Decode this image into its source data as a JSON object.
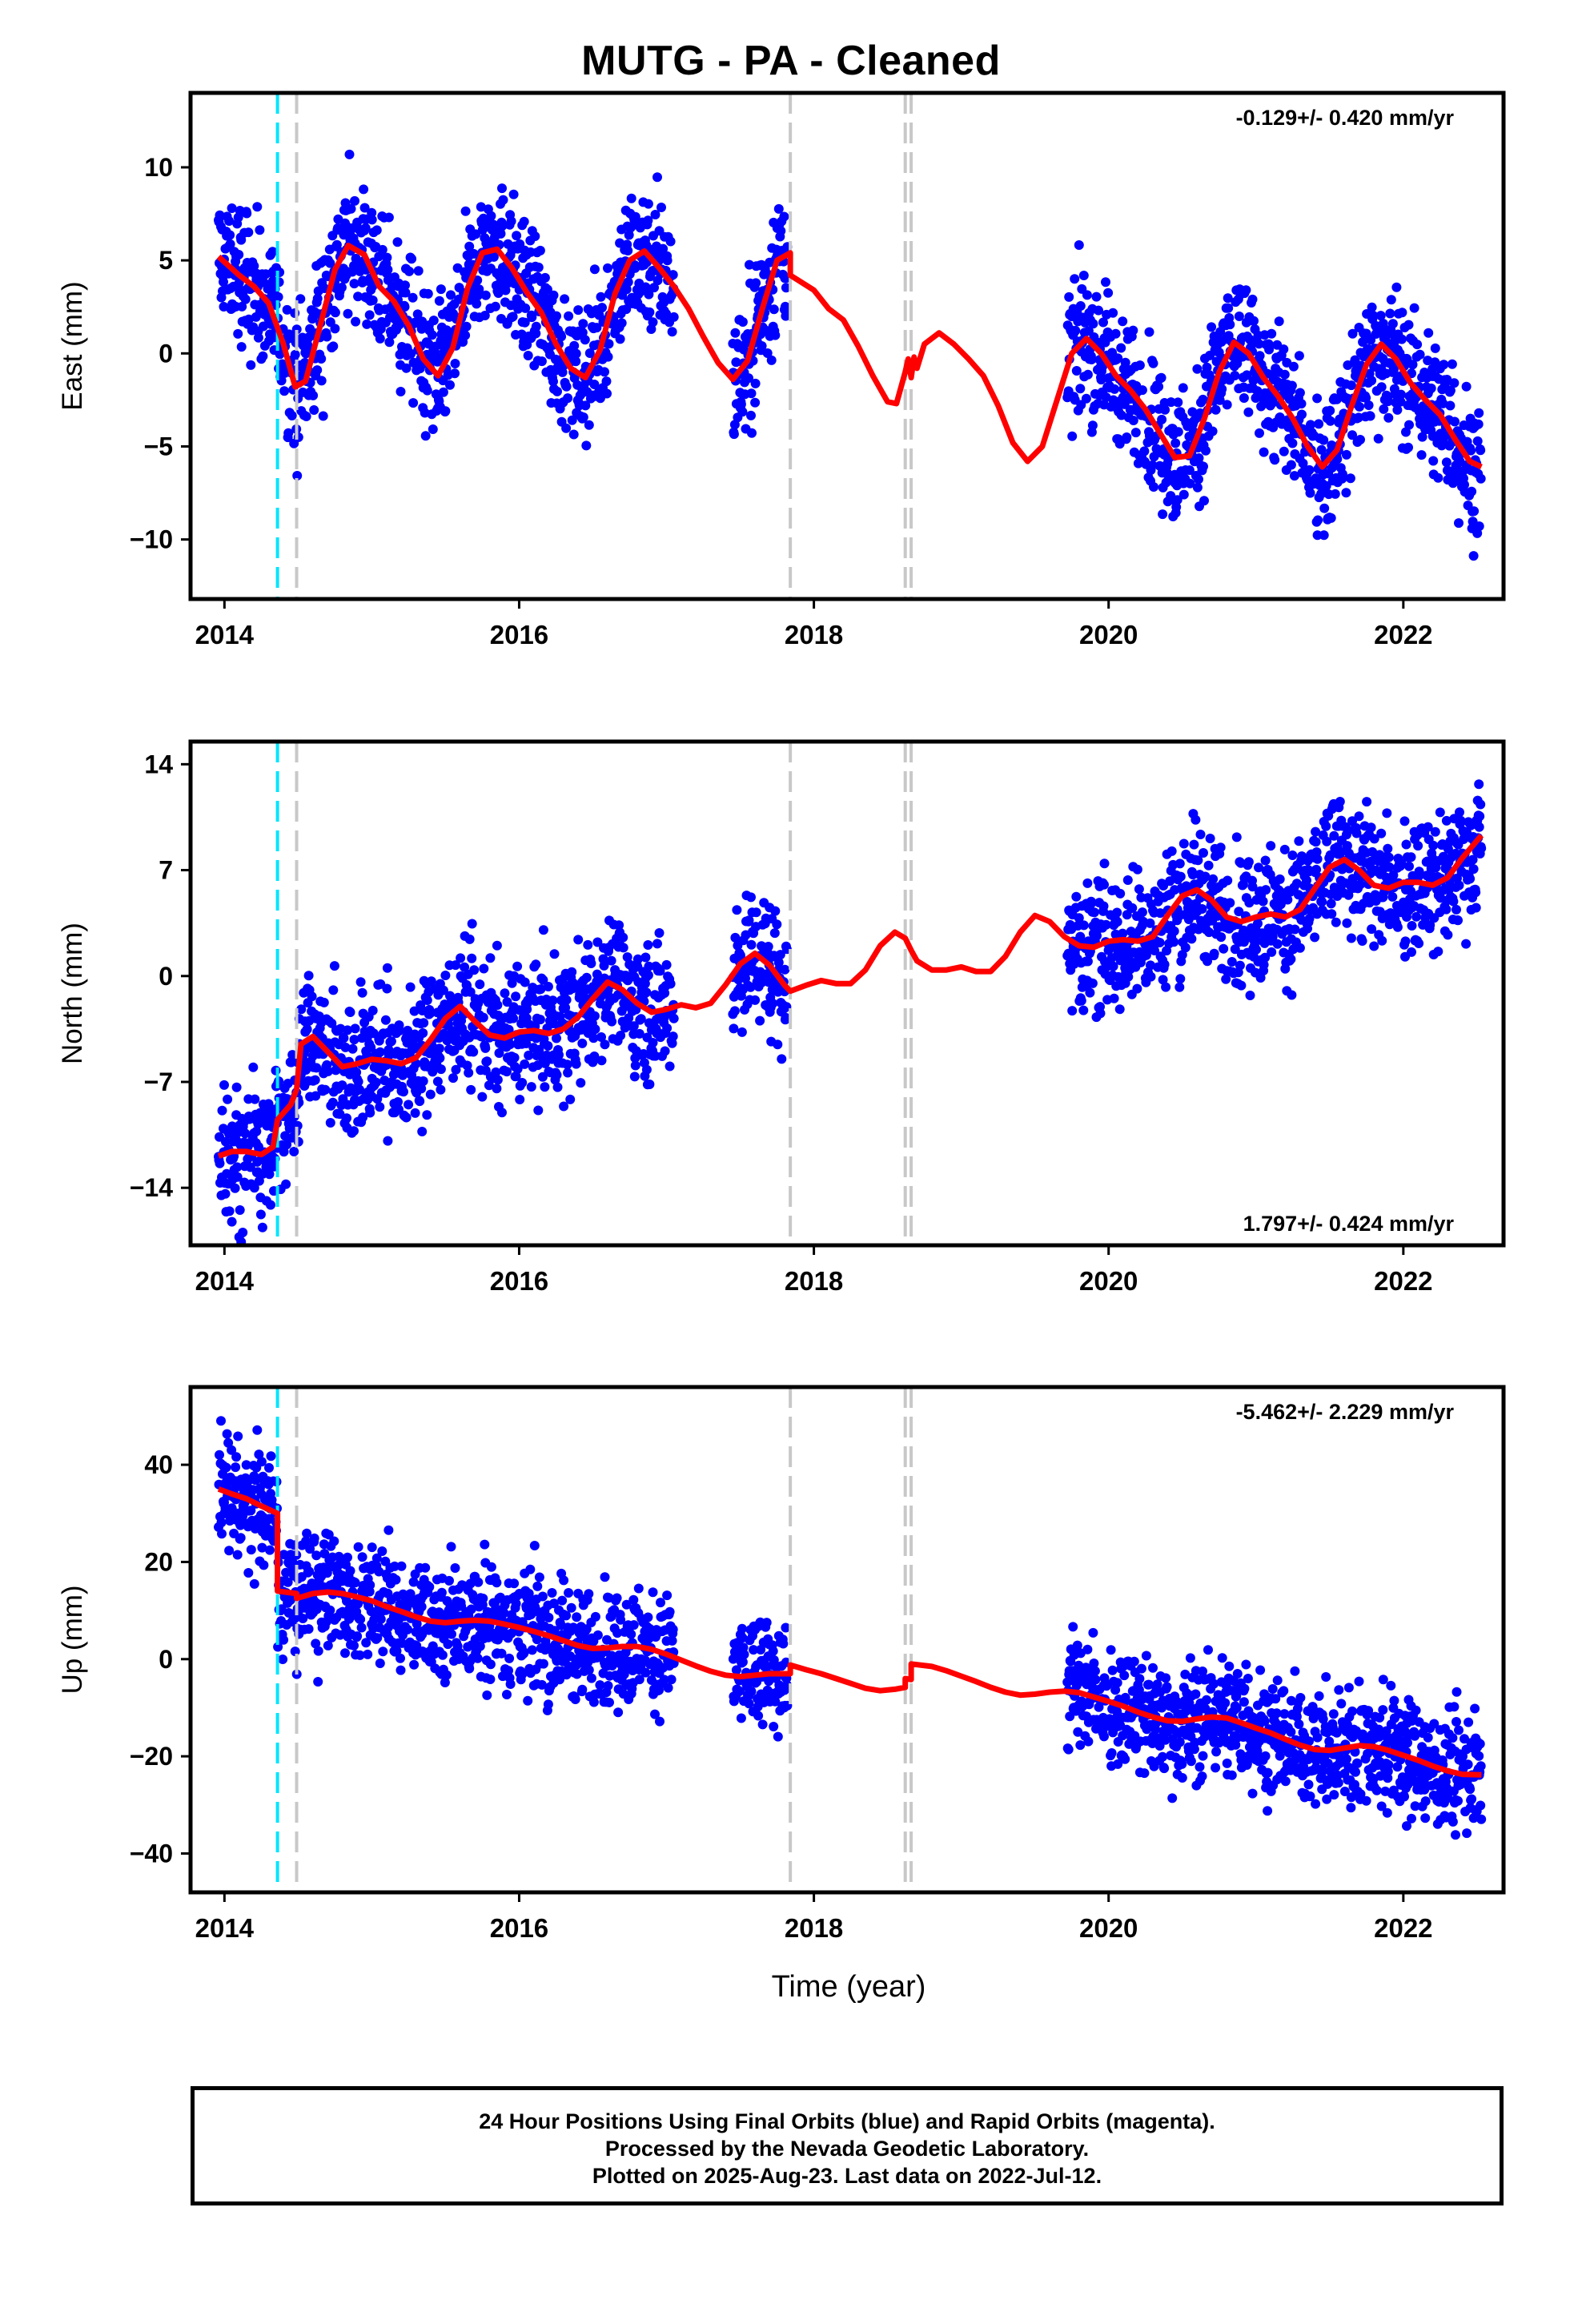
{
  "title": "MUTG  - PA - Cleaned",
  "xlabel": "Time (year)",
  "footer": {
    "line1": "24 Hour Positions Using Final Orbits (blue) and Rapid Orbits (magenta).",
    "line2": "Processed by the Nevada Geodetic Laboratory.",
    "line3": "Plotted on 2025-Aug-23. Last data on 2022-Jul-12."
  },
  "colors": {
    "points": "#0000ff",
    "fit": "#ff0000",
    "equipment_change": "#c8c8c8",
    "earthquake": "#00e5ff"
  },
  "chart_data": [
    {
      "type": "scatter",
      "ylabel": "East (mm)",
      "rate": "-0.129+/- 0.420 mm/yr",
      "rate_position": "top-right",
      "xlim": [
        2013.77,
        2022.68
      ],
      "ylim": [
        -13.2,
        14.0
      ],
      "yticks": [
        -10,
        -5,
        0,
        5,
        10
      ],
      "xticks": [
        2014,
        2016,
        2018,
        2020,
        2022
      ],
      "cyan_lines": [
        2014.36
      ],
      "gray_lines": [
        2014.49,
        2017.84,
        2018.62,
        2018.66
      ],
      "data_segments": [
        [
          2013.96,
          2014.55
        ],
        [
          2014.55,
          2017.05
        ],
        [
          2017.45,
          2017.82
        ],
        [
          2019.72,
          2022.53
        ]
      ],
      "fit_curve": [
        [
          2013.96,
          5.2
        ],
        [
          2014.1,
          4.2
        ],
        [
          2014.2,
          3.6
        ],
        [
          2014.3,
          2.7
        ],
        [
          2014.4,
          0.5
        ],
        [
          2014.48,
          -1.8
        ],
        [
          2014.55,
          -1.5
        ],
        [
          2014.65,
          1.5
        ],
        [
          2014.75,
          4.5
        ],
        [
          2014.84,
          5.8
        ],
        [
          2014.95,
          5.3
        ],
        [
          2015.05,
          3.6
        ],
        [
          2015.15,
          2.8
        ],
        [
          2015.25,
          1.5
        ],
        [
          2015.35,
          -0.3
        ],
        [
          2015.45,
          -1.2
        ],
        [
          2015.55,
          0.3
        ],
        [
          2015.65,
          3.5
        ],
        [
          2015.75,
          5.4
        ],
        [
          2015.85,
          5.6
        ],
        [
          2015.95,
          4.6
        ],
        [
          2016.05,
          3.3
        ],
        [
          2016.15,
          2.2
        ],
        [
          2016.25,
          0.5
        ],
        [
          2016.35,
          -0.8
        ],
        [
          2016.45,
          -1.3
        ],
        [
          2016.55,
          0.2
        ],
        [
          2016.65,
          3.2
        ],
        [
          2016.75,
          5.0
        ],
        [
          2016.85,
          5.5
        ],
        [
          2016.95,
          4.6
        ],
        [
          2017.05,
          3.6
        ],
        [
          2017.15,
          2.4
        ],
        [
          2017.25,
          0.9
        ],
        [
          2017.35,
          -0.5
        ],
        [
          2017.45,
          -1.4
        ],
        [
          2017.55,
          -0.4
        ],
        [
          2017.65,
          2.4
        ],
        [
          2017.75,
          5.0
        ],
        [
          2017.84,
          5.4
        ],
        [
          2017.84,
          4.2
        ],
        [
          2018.0,
          3.4
        ],
        [
          2018.1,
          2.4
        ],
        [
          2018.2,
          1.8
        ],
        [
          2018.3,
          0.4
        ],
        [
          2018.4,
          -1.2
        ],
        [
          2018.5,
          -2.6
        ],
        [
          2018.56,
          -2.7
        ],
        [
          2018.62,
          -1.0
        ],
        [
          2018.64,
          -0.3
        ],
        [
          2018.66,
          -1.3
        ],
        [
          2018.68,
          -0.2
        ],
        [
          2018.7,
          -0.8
        ],
        [
          2018.75,
          0.5
        ],
        [
          2018.85,
          1.1
        ],
        [
          2018.95,
          0.5
        ],
        [
          2019.05,
          -0.3
        ],
        [
          2019.15,
          -1.2
        ],
        [
          2019.25,
          -2.8
        ],
        [
          2019.35,
          -4.8
        ],
        [
          2019.45,
          -5.8
        ],
        [
          2019.55,
          -5.0
        ],
        [
          2019.65,
          -2.5
        ],
        [
          2019.75,
          0.0
        ],
        [
          2019.85,
          0.8
        ],
        [
          2019.95,
          0.0
        ],
        [
          2020.05,
          -1.2
        ],
        [
          2020.15,
          -2.0
        ],
        [
          2020.25,
          -3.0
        ],
        [
          2020.35,
          -4.3
        ],
        [
          2020.45,
          -5.6
        ],
        [
          2020.55,
          -5.5
        ],
        [
          2020.65,
          -3.5
        ],
        [
          2020.75,
          -1.0
        ],
        [
          2020.85,
          0.6
        ],
        [
          2020.95,
          0.0
        ],
        [
          2021.05,
          -1.3
        ],
        [
          2021.15,
          -2.3
        ],
        [
          2021.25,
          -3.5
        ],
        [
          2021.35,
          -5.0
        ],
        [
          2021.45,
          -6.1
        ],
        [
          2021.55,
          -5.2
        ],
        [
          2021.65,
          -2.8
        ],
        [
          2021.75,
          -0.6
        ],
        [
          2021.85,
          0.5
        ],
        [
          2021.95,
          -0.3
        ],
        [
          2022.05,
          -1.6
        ],
        [
          2022.15,
          -2.5
        ],
        [
          2022.25,
          -3.3
        ],
        [
          2022.35,
          -4.6
        ],
        [
          2022.45,
          -5.8
        ],
        [
          2022.53,
          -6.1
        ]
      ]
    },
    {
      "type": "scatter",
      "ylabel": "North (mm)",
      "rate": "1.797+/- 0.424 mm/yr",
      "rate_position": "bottom-right",
      "xlim": [
        2013.77,
        2022.68
      ],
      "ylim": [
        -17.8,
        15.5
      ],
      "yticks": [
        -14,
        -7,
        0,
        7,
        14
      ],
      "xticks": [
        2014,
        2016,
        2018,
        2020,
        2022
      ],
      "cyan_lines": [
        2014.36
      ],
      "gray_lines": [
        2014.49,
        2017.84,
        2018.62,
        2018.66
      ],
      "data_segments": [
        [
          2013.96,
          2014.55
        ],
        [
          2014.55,
          2017.05
        ],
        [
          2017.45,
          2017.82
        ],
        [
          2019.72,
          2022.53
        ]
      ],
      "fit_curve": [
        [
          2013.96,
          -11.9
        ],
        [
          2014.05,
          -11.6
        ],
        [
          2014.15,
          -11.6
        ],
        [
          2014.25,
          -11.8
        ],
        [
          2014.33,
          -11.3
        ],
        [
          2014.36,
          -9.5
        ],
        [
          2014.45,
          -8.5
        ],
        [
          2014.49,
          -7.5
        ],
        [
          2014.52,
          -4.5
        ],
        [
          2014.6,
          -4.0
        ],
        [
          2014.7,
          -5.0
        ],
        [
          2014.8,
          -6.0
        ],
        [
          2014.9,
          -5.8
        ],
        [
          2015.0,
          -5.5
        ],
        [
          2015.1,
          -5.6
        ],
        [
          2015.2,
          -5.8
        ],
        [
          2015.3,
          -5.4
        ],
        [
          2015.4,
          -4.2
        ],
        [
          2015.5,
          -2.8
        ],
        [
          2015.6,
          -2.0
        ],
        [
          2015.7,
          -3.0
        ],
        [
          2015.8,
          -3.9
        ],
        [
          2015.9,
          -4.1
        ],
        [
          2016.0,
          -3.7
        ],
        [
          2016.1,
          -3.6
        ],
        [
          2016.2,
          -3.8
        ],
        [
          2016.3,
          -3.5
        ],
        [
          2016.4,
          -2.7
        ],
        [
          2016.5,
          -1.5
        ],
        [
          2016.6,
          -0.4
        ],
        [
          2016.7,
          -0.9
        ],
        [
          2016.8,
          -1.8
        ],
        [
          2016.9,
          -2.4
        ],
        [
          2017.0,
          -2.2
        ],
        [
          2017.1,
          -1.9
        ],
        [
          2017.2,
          -2.1
        ],
        [
          2017.3,
          -1.8
        ],
        [
          2017.4,
          -0.6
        ],
        [
          2017.5,
          0.8
        ],
        [
          2017.6,
          1.5
        ],
        [
          2017.7,
          0.7
        ],
        [
          2017.8,
          -0.6
        ],
        [
          2017.84,
          -1.0
        ],
        [
          2017.95,
          -0.6
        ],
        [
          2018.05,
          -0.3
        ],
        [
          2018.15,
          -0.5
        ],
        [
          2018.25,
          -0.5
        ],
        [
          2018.35,
          0.4
        ],
        [
          2018.45,
          2.0
        ],
        [
          2018.55,
          2.9
        ],
        [
          2018.62,
          2.5
        ],
        [
          2018.66,
          1.7
        ],
        [
          2018.7,
          1.0
        ],
        [
          2018.8,
          0.4
        ],
        [
          2018.9,
          0.4
        ],
        [
          2019.0,
          0.6
        ],
        [
          2019.1,
          0.3
        ],
        [
          2019.2,
          0.3
        ],
        [
          2019.3,
          1.3
        ],
        [
          2019.4,
          2.9
        ],
        [
          2019.5,
          4.0
        ],
        [
          2019.6,
          3.6
        ],
        [
          2019.7,
          2.6
        ],
        [
          2019.8,
          2.0
        ],
        [
          2019.9,
          1.9
        ],
        [
          2020.0,
          2.3
        ],
        [
          2020.1,
          2.4
        ],
        [
          2020.2,
          2.3
        ],
        [
          2020.3,
          2.6
        ],
        [
          2020.4,
          4.0
        ],
        [
          2020.5,
          5.3
        ],
        [
          2020.6,
          5.7
        ],
        [
          2020.7,
          5.0
        ],
        [
          2020.8,
          3.9
        ],
        [
          2020.9,
          3.6
        ],
        [
          2021.0,
          3.9
        ],
        [
          2021.1,
          4.1
        ],
        [
          2021.2,
          3.9
        ],
        [
          2021.3,
          4.4
        ],
        [
          2021.4,
          5.8
        ],
        [
          2021.5,
          7.2
        ],
        [
          2021.6,
          7.7
        ],
        [
          2021.7,
          7.0
        ],
        [
          2021.8,
          6.0
        ],
        [
          2021.9,
          5.8
        ],
        [
          2022.0,
          6.2
        ],
        [
          2022.1,
          6.2
        ],
        [
          2022.2,
          6.0
        ],
        [
          2022.3,
          6.5
        ],
        [
          2022.4,
          7.8
        ],
        [
          2022.53,
          9.3
        ]
      ]
    },
    {
      "type": "scatter",
      "ylabel": "Up (mm)",
      "rate": "-5.462+/- 2.229 mm/yr",
      "rate_position": "top-right",
      "xlim": [
        2013.77,
        2022.68
      ],
      "ylim": [
        -48.0,
        56.0
      ],
      "yticks": [
        -40,
        -20,
        0,
        20,
        40
      ],
      "xticks": [
        2014,
        2016,
        2018,
        2020,
        2022
      ],
      "cyan_lines": [
        2014.36
      ],
      "gray_lines": [
        2014.49,
        2017.84,
        2018.62,
        2018.66
      ],
      "data_segments": [
        [
          2013.96,
          2014.55
        ],
        [
          2014.55,
          2017.05
        ],
        [
          2017.45,
          2017.82
        ],
        [
          2019.72,
          2022.53
        ]
      ],
      "fit_curve": [
        [
          2013.96,
          35
        ],
        [
          2014.05,
          34
        ],
        [
          2014.15,
          33
        ],
        [
          2014.25,
          31.5
        ],
        [
          2014.36,
          30
        ],
        [
          2014.36,
          14
        ],
        [
          2014.49,
          13.5
        ],
        [
          2014.49,
          12.5
        ],
        [
          2014.6,
          13.5
        ],
        [
          2014.7,
          13.8
        ],
        [
          2014.8,
          13.5
        ],
        [
          2014.9,
          12.8
        ],
        [
          2015.0,
          12
        ],
        [
          2015.1,
          10.8
        ],
        [
          2015.2,
          9.8
        ],
        [
          2015.3,
          8.7
        ],
        [
          2015.4,
          7.8
        ],
        [
          2015.5,
          7.5
        ],
        [
          2015.6,
          7.8
        ],
        [
          2015.7,
          8.0
        ],
        [
          2015.8,
          7.8
        ],
        [
          2015.9,
          7.2
        ],
        [
          2016.0,
          6.5
        ],
        [
          2016.1,
          5.7
        ],
        [
          2016.2,
          4.8
        ],
        [
          2016.3,
          3.8
        ],
        [
          2016.4,
          2.8
        ],
        [
          2016.5,
          2.2
        ],
        [
          2016.6,
          2.3
        ],
        [
          2016.7,
          2.6
        ],
        [
          2016.8,
          2.6
        ],
        [
          2016.9,
          2.0
        ],
        [
          2017.0,
          1.0
        ],
        [
          2017.1,
          -0.2
        ],
        [
          2017.2,
          -1.4
        ],
        [
          2017.3,
          -2.5
        ],
        [
          2017.4,
          -3.3
        ],
        [
          2017.5,
          -3.6
        ],
        [
          2017.6,
          -3.3
        ],
        [
          2017.7,
          -3.0
        ],
        [
          2017.84,
          -3.0
        ],
        [
          2017.84,
          -1.2
        ],
        [
          2017.95,
          -2.2
        ],
        [
          2018.05,
          -3.0
        ],
        [
          2018.15,
          -4.0
        ],
        [
          2018.25,
          -5.0
        ],
        [
          2018.35,
          -6.0
        ],
        [
          2018.45,
          -6.5
        ],
        [
          2018.55,
          -6.2
        ],
        [
          2018.62,
          -5.8
        ],
        [
          2018.62,
          -4.0
        ],
        [
          2018.66,
          -4.2
        ],
        [
          2018.66,
          -1.0
        ],
        [
          2018.8,
          -1.5
        ],
        [
          2018.9,
          -2.4
        ],
        [
          2019.0,
          -3.5
        ],
        [
          2019.1,
          -4.6
        ],
        [
          2019.2,
          -5.8
        ],
        [
          2019.3,
          -6.8
        ],
        [
          2019.4,
          -7.4
        ],
        [
          2019.5,
          -7.2
        ],
        [
          2019.6,
          -6.8
        ],
        [
          2019.7,
          -6.6
        ],
        [
          2019.8,
          -6.9
        ],
        [
          2019.9,
          -7.8
        ],
        [
          2020.0,
          -8.7
        ],
        [
          2020.1,
          -9.7
        ],
        [
          2020.2,
          -10.9
        ],
        [
          2020.3,
          -11.9
        ],
        [
          2020.4,
          -12.7
        ],
        [
          2020.5,
          -12.8
        ],
        [
          2020.6,
          -12.3
        ],
        [
          2020.7,
          -11.9
        ],
        [
          2020.8,
          -12.1
        ],
        [
          2020.9,
          -13.1
        ],
        [
          2021.0,
          -14.2
        ],
        [
          2021.1,
          -15.2
        ],
        [
          2021.2,
          -16.5
        ],
        [
          2021.3,
          -17.7
        ],
        [
          2021.4,
          -18.6
        ],
        [
          2021.5,
          -18.8
        ],
        [
          2021.6,
          -18.3
        ],
        [
          2021.7,
          -17.8
        ],
        [
          2021.8,
          -18.0
        ],
        [
          2021.9,
          -18.8
        ],
        [
          2022.0,
          -19.8
        ],
        [
          2022.1,
          -20.8
        ],
        [
          2022.2,
          -22.0
        ],
        [
          2022.3,
          -23.0
        ],
        [
          2022.4,
          -23.7
        ],
        [
          2022.53,
          -23.8
        ]
      ]
    }
  ]
}
